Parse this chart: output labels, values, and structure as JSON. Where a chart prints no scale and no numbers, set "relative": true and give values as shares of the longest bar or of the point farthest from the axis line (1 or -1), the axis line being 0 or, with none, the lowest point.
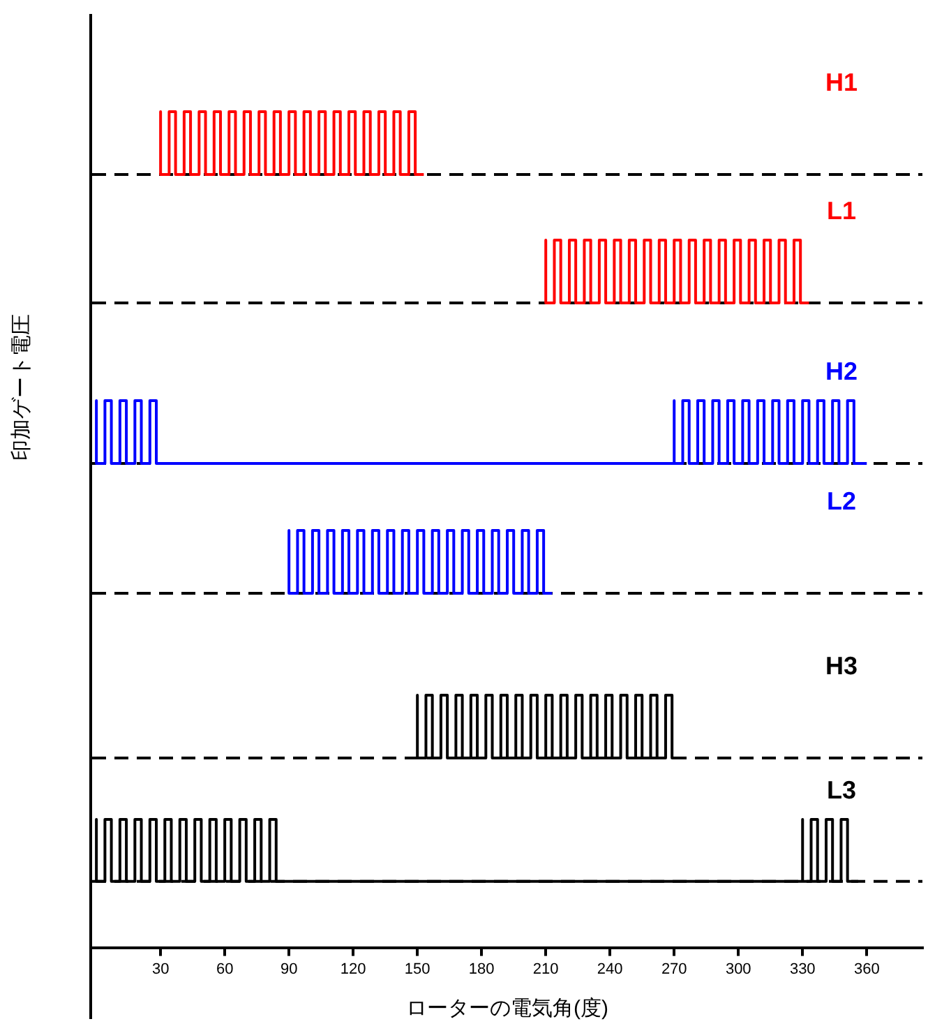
{
  "chart_data": [
    {
      "type": "step",
      "relative": true,
      "xlim": [
        -2,
        386
      ],
      "tick_labels": false,
      "legend": false,
      "grid": false,
      "ref_lines": [
        {
          "axis": "y",
          "value": 0,
          "color": "#000000",
          "line_style": "dashed"
        }
      ],
      "series": [
        {
          "name": "H1",
          "color": "#ff0000",
          "x": [
            30,
            30,
            34,
            37,
            41,
            44,
            48,
            51,
            55,
            58,
            62,
            65,
            69,
            72,
            76,
            79,
            83,
            86,
            90,
            93,
            97,
            100,
            104,
            107,
            111,
            114,
            118,
            121,
            125,
            128,
            132,
            135,
            139,
            142,
            146,
            149,
            153
          ],
          "values": [
            0,
            1,
            0,
            1,
            0,
            1,
            0,
            1,
            0,
            1,
            0,
            1,
            0,
            1,
            0,
            1,
            0,
            1,
            0,
            1,
            0,
            1,
            0,
            1,
            0,
            1,
            0,
            1,
            0,
            1,
            0,
            1,
            0,
            1,
            0,
            1,
            0
          ]
        }
      ]
    },
    {
      "type": "step",
      "relative": true,
      "xlim": [
        -2,
        386
      ],
      "tick_labels": false,
      "legend": false,
      "grid": false,
      "ref_lines": [
        {
          "axis": "y",
          "value": 0,
          "color": "#000000",
          "line_style": "dashed"
        }
      ],
      "series": [
        {
          "name": "L1",
          "color": "#ff0000",
          "x": [
            210,
            210,
            214,
            217,
            221,
            224,
            228,
            231,
            235,
            238,
            242,
            245,
            249,
            252,
            256,
            259,
            263,
            266,
            270,
            273,
            277,
            280,
            284,
            287,
            291,
            294,
            298,
            301,
            305,
            308,
            312,
            315,
            319,
            322,
            326,
            329,
            333
          ],
          "values": [
            0,
            1,
            0,
            1,
            0,
            1,
            0,
            1,
            0,
            1,
            0,
            1,
            0,
            1,
            0,
            1,
            0,
            1,
            0,
            1,
            0,
            1,
            0,
            1,
            0,
            1,
            0,
            1,
            0,
            1,
            0,
            1,
            0,
            1,
            0,
            1,
            0
          ]
        }
      ]
    },
    {
      "type": "step",
      "relative": true,
      "xlim": [
        -2,
        386
      ],
      "tick_labels": false,
      "legend": false,
      "grid": false,
      "ref_lines": [
        {
          "axis": "y",
          "value": 0,
          "color": "#000000",
          "line_style": "dashed"
        }
      ],
      "ylabel": "印加ゲート電圧",
      "series": [
        {
          "name": "H2",
          "color": "#0000ff",
          "x": [
            0,
            0,
            4,
            7,
            11,
            14,
            18,
            21,
            25,
            28,
            32,
            270,
            270,
            274,
            277,
            281,
            284,
            288,
            291,
            295,
            298,
            302,
            305,
            309,
            312,
            316,
            319,
            323,
            326,
            330,
            333,
            337,
            340,
            344,
            347,
            351,
            354,
            360
          ],
          "values": [
            0,
            1,
            0,
            1,
            0,
            1,
            0,
            1,
            0,
            1,
            0,
            0,
            1,
            0,
            1,
            0,
            1,
            0,
            1,
            0,
            1,
            0,
            1,
            0,
            1,
            0,
            1,
            0,
            1,
            0,
            1,
            0,
            1,
            0,
            1,
            0,
            1,
            0
          ]
        }
      ]
    },
    {
      "type": "step",
      "relative": true,
      "xlim": [
        -2,
        386
      ],
      "tick_labels": false,
      "legend": false,
      "grid": false,
      "ref_lines": [
        {
          "axis": "y",
          "value": 0,
          "color": "#000000",
          "line_style": "dashed"
        }
      ],
      "series": [
        {
          "name": "L2",
          "color": "#0000ff",
          "x": [
            90,
            90,
            94,
            97,
            101,
            104,
            108,
            111,
            115,
            118,
            122,
            125,
            129,
            132,
            136,
            139,
            143,
            146,
            150,
            153,
            157,
            160,
            164,
            167,
            171,
            174,
            178,
            181,
            185,
            188,
            192,
            195,
            199,
            202,
            206,
            209,
            213
          ],
          "values": [
            0,
            1,
            0,
            1,
            0,
            1,
            0,
            1,
            0,
            1,
            0,
            1,
            0,
            1,
            0,
            1,
            0,
            1,
            0,
            1,
            0,
            1,
            0,
            1,
            0,
            1,
            0,
            1,
            0,
            1,
            0,
            1,
            0,
            1,
            0,
            1,
            0
          ]
        }
      ]
    },
    {
      "type": "step",
      "relative": true,
      "xlim": [
        -2,
        386
      ],
      "tick_labels": false,
      "legend": false,
      "grid": false,
      "ref_lines": [
        {
          "axis": "y",
          "value": 0,
          "color": "#000000",
          "line_style": "dashed"
        }
      ],
      "series": [
        {
          "name": "H3",
          "color": "#000000",
          "x": [
            150,
            150,
            154,
            157,
            161,
            164,
            168,
            171,
            175,
            178,
            182,
            185,
            189,
            192,
            196,
            199,
            203,
            206,
            210,
            213,
            217,
            220,
            224,
            227,
            231,
            234,
            238,
            241,
            245,
            248,
            252,
            255,
            259,
            262,
            266,
            269,
            273
          ],
          "values": [
            0,
            1,
            0,
            1,
            0,
            1,
            0,
            1,
            0,
            1,
            0,
            1,
            0,
            1,
            0,
            1,
            0,
            1,
            0,
            1,
            0,
            1,
            0,
            1,
            0,
            1,
            0,
            1,
            0,
            1,
            0,
            1,
            0,
            1,
            0,
            1,
            0
          ]
        }
      ]
    },
    {
      "type": "step",
      "relative": true,
      "xlabel": "ローターの電気角(度)",
      "xlim": [
        -2,
        386
      ],
      "xticks": [
        30,
        60,
        90,
        120,
        150,
        180,
        210,
        240,
        270,
        300,
        330,
        360
      ],
      "tick_labels": "x",
      "legend": false,
      "grid": false,
      "ref_lines": [
        {
          "axis": "y",
          "value": 0,
          "color": "#000000",
          "line_style": "dashed"
        }
      ],
      "series": [
        {
          "name": "L3",
          "color": "#000000",
          "x": [
            0,
            0,
            4,
            7,
            11,
            14,
            18,
            21,
            25,
            28,
            32,
            35,
            39,
            42,
            46,
            49,
            53,
            56,
            60,
            63,
            67,
            70,
            74,
            77,
            81,
            84,
            90,
            330,
            330,
            334,
            337,
            341,
            344,
            348,
            351,
            356
          ],
          "values": [
            0,
            1,
            0,
            1,
            0,
            1,
            0,
            1,
            0,
            1,
            0,
            1,
            0,
            1,
            0,
            1,
            0,
            1,
            0,
            1,
            0,
            1,
            0,
            1,
            0,
            1,
            0,
            0,
            1,
            0,
            1,
            0,
            1,
            0,
            1,
            0
          ]
        }
      ]
    }
  ]
}
